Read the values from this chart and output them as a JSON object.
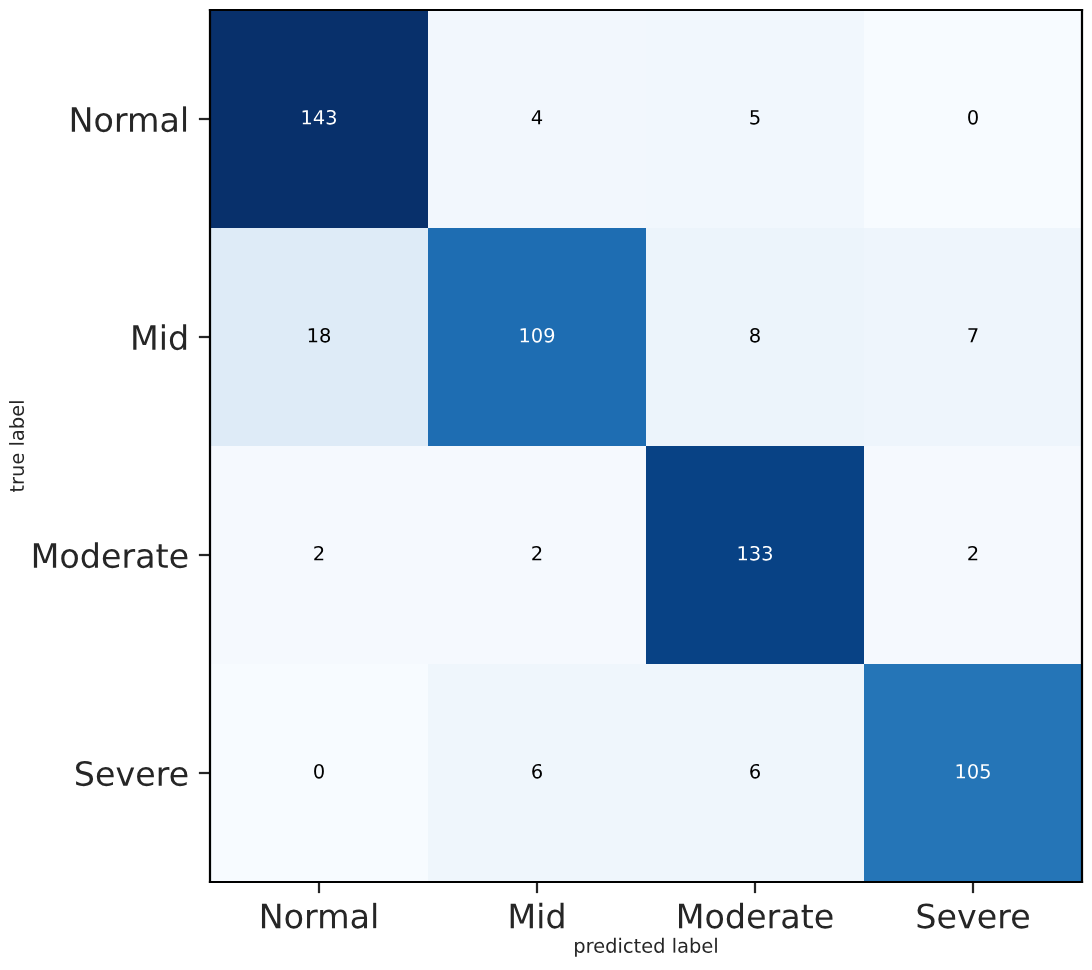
{
  "chart_data": {
    "type": "heatmap",
    "xlabel": "predicted label",
    "ylabel": "true label",
    "categories": [
      "Normal",
      "Mid",
      "Moderate",
      "Severe"
    ],
    "y_categories": [
      "Normal",
      "Mid",
      "Moderate",
      "Severe"
    ],
    "cells": [
      [
        143,
        4,
        5,
        0
      ],
      [
        18,
        109,
        8,
        7
      ],
      [
        2,
        2,
        133,
        2
      ],
      [
        0,
        6,
        6,
        105
      ]
    ],
    "data_labels": true
  }
}
